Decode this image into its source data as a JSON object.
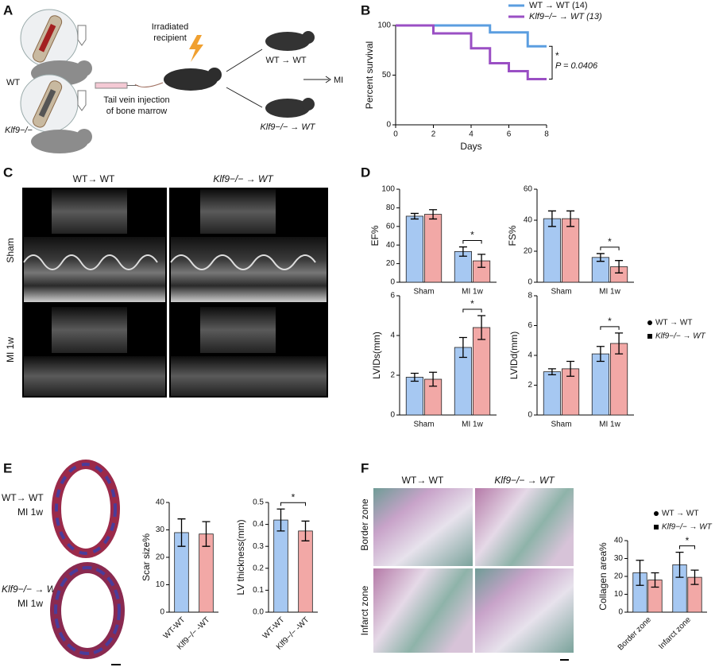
{
  "panels": {
    "A": {
      "letter": "A",
      "donor_wt": "WT",
      "donor_ko": "Klf9−/−",
      "recipient": [
        "Irradiated",
        "recipient"
      ],
      "injection": [
        "Tail vein injection",
        "of bone marrow"
      ],
      "group_wt": "WT → WT",
      "group_ko": "Klf9−/− → WT",
      "outcome": "MI"
    },
    "B": {
      "letter": "B"
    },
    "C": {
      "letter": "C",
      "col_wt": "WT→ WT",
      "col_ko": "Klf9−/− → WT",
      "row_sham": "Sham",
      "row_mi": "MI 1w"
    },
    "D": {
      "letter": "D"
    },
    "E": {
      "letter": "E",
      "wt": [
        "WT→ WT",
        "MI 1w"
      ],
      "ko": [
        "Klf9−/− → WT",
        "MI 1w"
      ]
    },
    "F": {
      "letter": "F",
      "col_wt": "WT→ WT",
      "col_ko": "Klf9−/− → WT",
      "row_border": "Border zone",
      "row_infarct": "Infarct zone"
    }
  },
  "chart_data": [
    {
      "type": "line",
      "step": true,
      "ylabel": "Percent survival",
      "xlabel": "Days",
      "xlim": [
        0,
        8
      ],
      "xticks": [
        0,
        2,
        4,
        6,
        8
      ],
      "ylim": [
        0,
        100
      ],
      "yticks": [
        0,
        50,
        100
      ],
      "legend": "top",
      "series": [
        {
          "name": "WT → WT (14)",
          "color": "#5b9ee0",
          "x": [
            0,
            5,
            7,
            8
          ],
          "values": [
            100,
            93,
            79,
            79
          ]
        },
        {
          "name": "Klf9−/− → WT (13)",
          "color": "#9a4fc4",
          "x": [
            0,
            2,
            4,
            5,
            6,
            7,
            8
          ],
          "values": [
            100,
            92,
            77,
            62,
            54,
            46,
            46
          ]
        }
      ],
      "significance": "*",
      "annotation": "P = 0.0406"
    },
    {
      "type": "bar",
      "ylabel": "EF%",
      "categories": [
        "Sham",
        "MI 1w"
      ],
      "ylim": [
        0,
        100
      ],
      "yticks": [
        0,
        20,
        40,
        60,
        80,
        100
      ],
      "series": [
        {
          "color": "#a6c8f2",
          "values": [
            71,
            33
          ],
          "errors": [
            3,
            5
          ]
        },
        {
          "color": "#f2a8a6",
          "values": [
            73,
            23
          ],
          "errors": [
            5,
            7
          ]
        }
      ],
      "significance": "*"
    },
    {
      "type": "bar",
      "ylabel": "FS%",
      "categories": [
        "Sham",
        "MI 1w"
      ],
      "ylim": [
        0,
        60
      ],
      "yticks": [
        0,
        20,
        40,
        60
      ],
      "series": [
        {
          "color": "#a6c8f2",
          "values": [
            41,
            16
          ],
          "errors": [
            5,
            2.5
          ]
        },
        {
          "color": "#f2a8a6",
          "values": [
            41,
            10
          ],
          "errors": [
            5,
            4
          ]
        }
      ],
      "significance": "*"
    },
    {
      "type": "bar",
      "ylabel": "LVIDs(mm)",
      "categories": [
        "Sham",
        "MI 1w"
      ],
      "ylim": [
        0,
        6
      ],
      "yticks": [
        0,
        2,
        4,
        6
      ],
      "series": [
        {
          "color": "#a6c8f2",
          "values": [
            1.9,
            3.4
          ],
          "errors": [
            0.2,
            0.5
          ]
        },
        {
          "color": "#f2a8a6",
          "values": [
            1.8,
            4.4
          ],
          "errors": [
            0.35,
            0.6
          ]
        }
      ],
      "significance": "*"
    },
    {
      "type": "bar",
      "ylabel": "LVIDd(mm)",
      "categories": [
        "Sham",
        "MI 1w"
      ],
      "ylim": [
        0,
        8
      ],
      "yticks": [
        0,
        2,
        4,
        6,
        8
      ],
      "legend": "right",
      "series": [
        {
          "name": "WT → WT",
          "marker": "circle",
          "color": "#a6c8f2",
          "values": [
            2.9,
            4.1
          ],
          "errors": [
            0.2,
            0.5
          ]
        },
        {
          "name": "Klf9−/− → WT",
          "marker": "square",
          "color": "#f2a8a6",
          "values": [
            3.1,
            4.8
          ],
          "errors": [
            0.5,
            0.7
          ]
        }
      ],
      "significance": "*"
    },
    {
      "type": "bar",
      "ylabel": "Scar size%",
      "categories": [
        "WT-WT",
        "Klf9−/− -WT"
      ],
      "label_rotation": -45,
      "ylim": [
        0,
        40
      ],
      "yticks": [
        0,
        10,
        20,
        30,
        40
      ],
      "values": [
        29,
        28.5
      ],
      "errors": [
        5,
        4.5
      ],
      "colors": [
        "#a6c8f2",
        "#f2a8a6"
      ]
    },
    {
      "type": "bar",
      "ylabel": "LV thickness(mm)",
      "categories": [
        "WT-WT",
        "Klf9−/− -WT"
      ],
      "label_rotation": -45,
      "ylim": [
        0,
        0.5
      ],
      "yticks": [
        {
          "value": 0,
          "label": "0.0"
        },
        0.1,
        0.2,
        0.3,
        0.4,
        0.5
      ],
      "values": [
        0.42,
        0.37
      ],
      "errors": [
        0.05,
        0.045
      ],
      "colors": [
        "#a6c8f2",
        "#f2a8a6"
      ],
      "significance": "*"
    },
    {
      "type": "bar",
      "ylabel": "Collagen area%",
      "categories": [
        "Border zone",
        "Infarct zone"
      ],
      "label_rotation": -45,
      "ylim": [
        0,
        40
      ],
      "yticks": [
        0,
        10,
        20,
        30,
        40
      ],
      "legend": "top-right",
      "series": [
        {
          "name": "WT → WT",
          "marker": "circle",
          "color": "#a6c8f2",
          "values": [
            22,
            26.5
          ],
          "errors": [
            7,
            7
          ]
        },
        {
          "name": "Klf9−/− → WT",
          "marker": "square",
          "color": "#f2a8a6",
          "values": [
            18,
            19.5
          ],
          "errors": [
            4,
            4
          ]
        }
      ],
      "significance": "*"
    }
  ]
}
